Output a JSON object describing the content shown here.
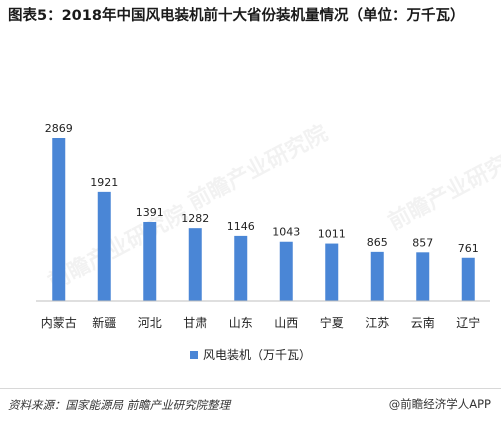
{
  "title": "图表5：2018年中国风电装机前十大省份装机量情况（单位：万千瓦）",
  "chart_data": {
    "type": "bar",
    "title": "图表5：2018年中国风电装机前十大省份装机量情况（单位：万千瓦）",
    "categories": [
      "内蒙古",
      "新疆",
      "河北",
      "甘肃",
      "山东",
      "山西",
      "宁夏",
      "江苏",
      "云南",
      "辽宁"
    ],
    "series": [
      {
        "name": "风电装机（万千瓦）",
        "values": [
          2869,
          1921,
          1391,
          1282,
          1146,
          1043,
          1011,
          865,
          857,
          761
        ]
      }
    ],
    "ylim": [
      0,
      3000
    ],
    "grid": false,
    "legend": "bottom",
    "bar_color": "#4a86d6"
  },
  "footer": {
    "source": "资料来源：国家能源局  前瞻产业研究院整理",
    "brand": "@前瞻经济学人APP"
  },
  "watermark": "前瞻产业研究院"
}
